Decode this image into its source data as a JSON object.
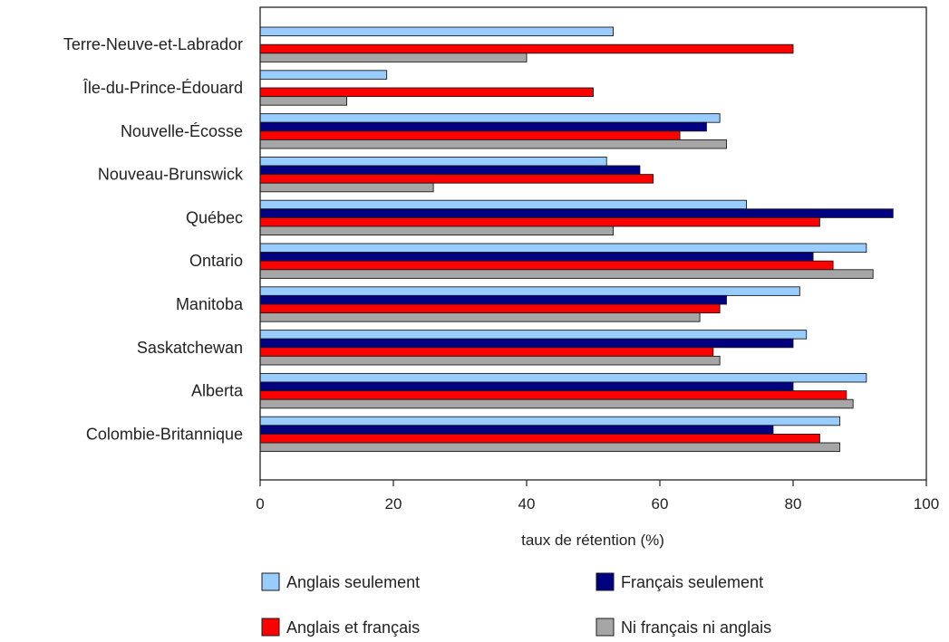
{
  "chart_data": {
    "type": "bar",
    "orientation": "horizontal",
    "categories": [
      "Terre-Neuve-et-Labrador",
      "Île-du-Prince-Édouard",
      "Nouvelle-Écosse",
      "Nouveau-Brunswick",
      "Québec",
      "Ontario",
      "Manitoba",
      "Saskatchewan",
      "Alberta",
      "Colombie-Britannique"
    ],
    "series": [
      {
        "name": "Anglais seulement",
        "color": "#99ccff",
        "values": [
          53,
          19,
          69,
          52,
          73,
          91,
          81,
          82,
          91,
          87
        ]
      },
      {
        "name": "Français seulement",
        "color": "#000080",
        "values": [
          null,
          null,
          67,
          57,
          95,
          83,
          70,
          80,
          80,
          77
        ]
      },
      {
        "name": "Anglais et français",
        "color": "#ff0000",
        "values": [
          80,
          50,
          63,
          59,
          84,
          86,
          69,
          68,
          88,
          84
        ]
      },
      {
        "name": "Ni français ni anglais",
        "color": "#a6a6a6",
        "values": [
          40,
          13,
          70,
          26,
          53,
          92,
          66,
          69,
          89,
          87
        ]
      }
    ],
    "xlabel": "taux de rétention (%)",
    "xlim": [
      0,
      100
    ],
    "xticks": [
      0,
      20,
      40,
      60,
      80,
      100
    ],
    "grid": false,
    "legend_position": "bottom"
  }
}
